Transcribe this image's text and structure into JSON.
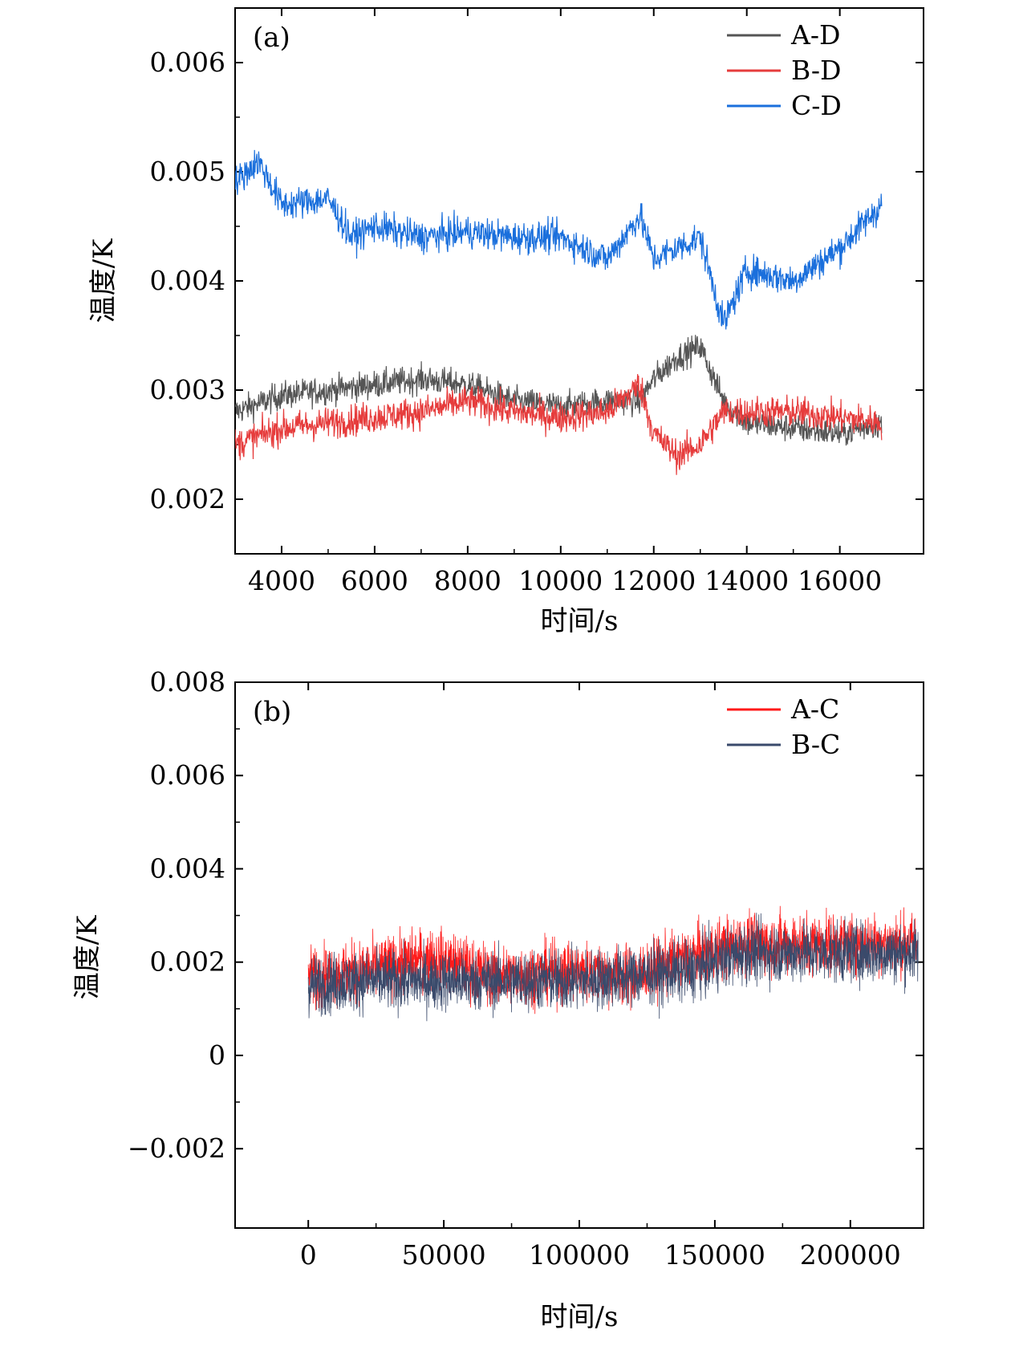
{
  "chart_data": [
    {
      "panel": "(a)",
      "type": "line",
      "xlabel": "时间/s",
      "ylabel": "温度/K",
      "xlim": [
        3000,
        17800
      ],
      "ylim": [
        0.0015,
        0.0065
      ],
      "xticks": [
        4000,
        6000,
        8000,
        10000,
        12000,
        14000,
        16000
      ],
      "yticks": [
        0.002,
        0.003,
        0.004,
        0.005,
        0.006
      ],
      "xtick_labels": [
        "4000",
        "6000",
        "8000",
        "10000",
        "12000",
        "14000",
        "16000"
      ],
      "ytick_labels": [
        "0.002",
        "0.003",
        "0.004",
        "0.005",
        "0.006"
      ],
      "legend_position": "top-right",
      "grid": false,
      "series": [
        {
          "name": "A-D",
          "color": "#555555",
          "x": [
            3000,
            4000,
            5000,
            6000,
            7000,
            8000,
            9000,
            10000,
            11000,
            11700,
            12000,
            12500,
            13000,
            13500,
            14000,
            15000,
            16000,
            16900
          ],
          "y": [
            0.0028,
            0.00295,
            0.003,
            0.00305,
            0.0031,
            0.00305,
            0.0029,
            0.00285,
            0.0029,
            0.0029,
            0.0031,
            0.0033,
            0.0034,
            0.0029,
            0.0027,
            0.00265,
            0.0026,
            0.0027
          ]
        },
        {
          "name": "B-D",
          "color": "#e63c3c",
          "x": [
            3000,
            4000,
            5000,
            6000,
            7000,
            8000,
            9000,
            10000,
            11000,
            11700,
            12000,
            12500,
            13000,
            13500,
            14000,
            15000,
            16000,
            16900
          ],
          "y": [
            0.0025,
            0.00265,
            0.0027,
            0.00275,
            0.0028,
            0.0029,
            0.0028,
            0.00275,
            0.0028,
            0.00305,
            0.0026,
            0.0024,
            0.0025,
            0.0028,
            0.0028,
            0.0028,
            0.00275,
            0.0027
          ]
        },
        {
          "name": "C-D",
          "color": "#1a6fdc",
          "x": [
            3000,
            3500,
            4000,
            5000,
            5500,
            6000,
            7000,
            8000,
            9000,
            10000,
            11000,
            11700,
            12000,
            13000,
            13500,
            14000,
            15000,
            16000,
            16900
          ],
          "y": [
            0.0049,
            0.0051,
            0.0047,
            0.00475,
            0.0044,
            0.0045,
            0.0044,
            0.00445,
            0.0044,
            0.0044,
            0.0042,
            0.0046,
            0.0042,
            0.0044,
            0.0036,
            0.0041,
            0.004,
            0.0043,
            0.0047
          ]
        }
      ]
    },
    {
      "panel": "(b)",
      "type": "line",
      "xlabel": "时间/s",
      "ylabel": "温度/K",
      "xlim": [
        -27000,
        227000
      ],
      "ylim": [
        -0.0037,
        0.008
      ],
      "xticks": [
        0,
        50000,
        100000,
        150000,
        200000
      ],
      "yticks": [
        -0.002,
        0,
        0.002,
        0.004,
        0.006,
        0.008
      ],
      "xtick_labels": [
        "0",
        "50000",
        "100000",
        "150000",
        "200000"
      ],
      "ytick_labels": [
        "−0.002",
        "0",
        "0.002",
        "0.004",
        "0.006",
        "0.008"
      ],
      "legend_position": "top-right",
      "grid": false,
      "series": [
        {
          "name": "A-C",
          "color": "#ff1a1a",
          "x": [
            0,
            20000,
            45000,
            70000,
            100000,
            120000,
            140000,
            160000,
            180000,
            200000,
            225000
          ],
          "y": [
            0.0017,
            0.0018,
            0.0021,
            0.0017,
            0.0018,
            0.0017,
            0.0021,
            0.0024,
            0.0024,
            0.0024,
            0.0024
          ]
        },
        {
          "name": "B-C",
          "color": "#3a4a6b",
          "x": [
            0,
            20000,
            45000,
            70000,
            100000,
            120000,
            140000,
            160000,
            180000,
            200000,
            225000
          ],
          "y": [
            0.0015,
            0.0016,
            0.0016,
            0.0016,
            0.0016,
            0.0017,
            0.0018,
            0.0022,
            0.0022,
            0.0022,
            0.0022
          ]
        }
      ]
    }
  ]
}
